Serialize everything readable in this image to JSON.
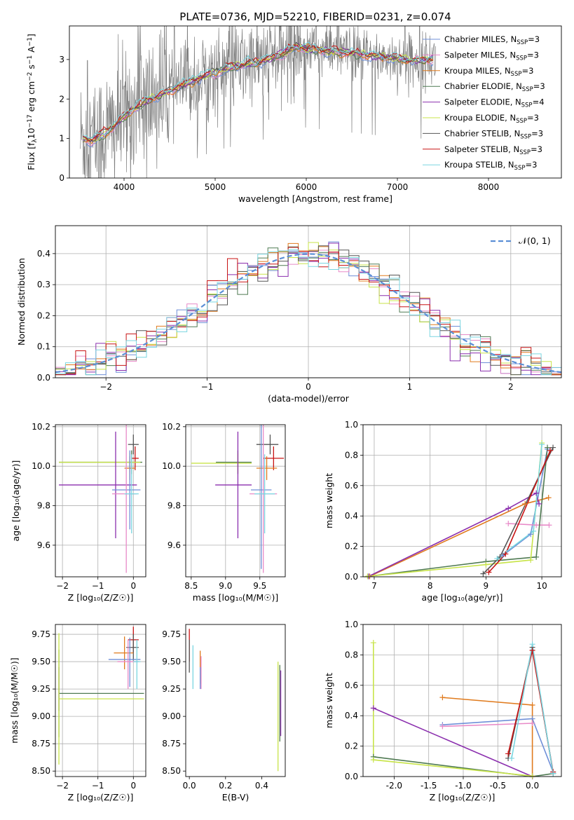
{
  "chart_data": [
    {
      "type": "line",
      "title": "PLATE=0736, MJD=52210, FIBERID=0231, z=0.074",
      "xlabel": "wavelength [Angstrom, rest frame]",
      "ylabel_parts": [
        "Flux [f",
        "λ",
        "10",
        "−17",
        " erg cm",
        "−2",
        " s",
        "−1",
        " A",
        "−1",
        "]"
      ],
      "xlim": [
        3400,
        8800
      ],
      "ylim": [
        0,
        3.85
      ],
      "xticks": [
        4000,
        5000,
        6000,
        7000,
        8000
      ],
      "yticks": [
        0,
        1,
        2,
        3
      ],
      "grid": false,
      "legend_position": "upper-right",
      "data_color": "#808080",
      "model_anchor_x": [
        3550,
        3650,
        3800,
        3900,
        4000,
        4100,
        4300,
        4500,
        4700,
        4900,
        5100,
        5300,
        5500,
        5700,
        5900,
        6100,
        6300,
        6500,
        6700,
        6900,
        7100,
        7300,
        7400
      ],
      "model_anchor_y": [
        1.0,
        0.95,
        1.15,
        1.35,
        1.55,
        1.75,
        2.0,
        2.2,
        2.4,
        2.6,
        2.75,
        2.85,
        2.95,
        3.1,
        3.3,
        3.25,
        3.2,
        3.15,
        3.1,
        3.05,
        3.0,
        3.0,
        3.0
      ],
      "series": [
        {
          "name": "Chabrier MILES, N",
          "sub": "SSP",
          "suffix": "=3",
          "color": "#6e8fd8"
        },
        {
          "name": "Salpeter MILES, N",
          "sub": "SSP",
          "suffix": "=3",
          "color": "#e88ac8"
        },
        {
          "name": "Kroupa MILES, N",
          "sub": "SSP",
          "suffix": "=3",
          "color": "#e07b1e"
        },
        {
          "name": "Chabrier ELODIE, N",
          "sub": "SSP",
          "suffix": "=3",
          "color": "#4f7a52"
        },
        {
          "name": "Salpeter ELODIE, N",
          "sub": "SSP",
          "suffix": "=4",
          "color": "#8b2fae"
        },
        {
          "name": "Kroupa ELODIE, N",
          "sub": "SSP",
          "suffix": "=3",
          "color": "#c8e44a"
        },
        {
          "name": "Chabrier STELIB, N",
          "sub": "SSP",
          "suffix": "=3",
          "color": "#555555"
        },
        {
          "name": "Salpeter STELIB, N",
          "sub": "SSP",
          "suffix": "=3",
          "color": "#c81414"
        },
        {
          "name": "Kroupa STELIB, N",
          "sub": "SSP",
          "suffix": "=3",
          "color": "#7ad6e0"
        }
      ]
    },
    {
      "type": "histogram",
      "xlabel": "(data-model)/error",
      "ylabel": "Normed distribution",
      "xlim": [
        -2.5,
        2.5
      ],
      "ylim": [
        0,
        0.49
      ],
      "xticks": [
        -2,
        -1,
        0,
        1,
        2
      ],
      "yticks": [
        0.0,
        0.1,
        0.2,
        0.3,
        0.4
      ],
      "grid": true,
      "legend_position": "upper-right",
      "legend_label": "𝒩(0, 1)",
      "normal_curve": {
        "mean": 0,
        "sigma": 1,
        "color": "#5b8fd6",
        "dash": true
      },
      "bin_width": 0.1,
      "bin_start": -2.5,
      "series_colors": [
        "#6e8fd8",
        "#e88ac8",
        "#e07b1e",
        "#4f7a52",
        "#8b2fae",
        "#c8e44a",
        "#555555",
        "#c81414",
        "#7ad6e0"
      ]
    },
    {
      "type": "errorbar",
      "panel": "age-vs-Z",
      "xlabel": "Z [log₁₀(Z/Z☉)]",
      "ylabel": "age  [log₁₀(age/yr)]",
      "xlim": [
        -2.2,
        0.35
      ],
      "ylim": [
        9.44,
        10.21
      ],
      "xticks": [
        -2,
        -1,
        0
      ],
      "yticks": [
        9.6,
        9.8,
        10.0,
        10.2
      ],
      "grid": true,
      "points": [
        {
          "x": 0.0,
          "y": 10.11,
          "xerr": [
            0.15,
            0.15
          ],
          "yerr": [
            0.05,
            0.05
          ],
          "color": "#555555"
        },
        {
          "x": 0.05,
          "y": 10.04,
          "xerr": [
            0.1,
            0.1
          ],
          "yerr": [
            0.06,
            0.06
          ],
          "color": "#c81414"
        },
        {
          "x": -0.05,
          "y": 10.02,
          "xerr": [
            2.05,
            0.3
          ],
          "yerr": [
            0.06,
            0.06
          ],
          "color": "#4f7a52"
        },
        {
          "x": -0.1,
          "y": 10.02,
          "xerr": [
            2.0,
            0.3
          ],
          "yerr": [
            0.05,
            0.05
          ],
          "color": "#c8e44a"
        },
        {
          "x": -0.1,
          "y": 9.99,
          "xerr": [
            0.15,
            0.15
          ],
          "yerr": [
            0.06,
            0.06
          ],
          "color": "#e07b1e"
        },
        {
          "x": -0.5,
          "y": 9.905,
          "xerr": [
            1.6,
            0.6
          ],
          "yerr": [
            0.27,
            0.27
          ],
          "color": "#8b2fae"
        },
        {
          "x": -0.1,
          "y": 9.88,
          "xerr": [
            0.5,
            0.3
          ],
          "yerr": [
            0.2,
            0.2
          ],
          "color": "#6e8fd8"
        },
        {
          "x": -0.2,
          "y": 9.86,
          "xerr": [
            0.4,
            0.3
          ],
          "yerr": [
            0.4,
            0.4
          ],
          "color": "#e88ac8"
        },
        {
          "x": -0.05,
          "y": 9.86,
          "xerr": [
            0.2,
            0.2
          ],
          "yerr": [
            0.2,
            0.2
          ],
          "color": "#7ad6e0"
        }
      ]
    },
    {
      "type": "errorbar",
      "panel": "age-vs-mass",
      "xlabel": "mass [log₁₀(M/M☉)]",
      "xlim": [
        8.42,
        9.87
      ],
      "ylim": [
        9.44,
        10.21
      ],
      "xticks": [
        8.5,
        9.0,
        9.5
      ],
      "yticks": [
        9.6,
        9.8,
        10.0,
        10.2
      ],
      "grid": true,
      "points": [
        {
          "x": 9.65,
          "y": 10.11,
          "xerr": [
            0.2,
            0.12
          ],
          "yerr": [
            0.05,
            0.05
          ],
          "color": "#555555"
        },
        {
          "x": 9.7,
          "y": 10.04,
          "xerr": [
            0.15,
            0.15
          ],
          "yerr": [
            0.06,
            0.06
          ],
          "color": "#c81414"
        },
        {
          "x": 9.18,
          "y": 10.02,
          "xerr": [
            0.32,
            0.2
          ],
          "yerr": [
            0.06,
            0.06
          ],
          "color": "#4f7a52"
        },
        {
          "x": 9.18,
          "y": 10.015,
          "xerr": [
            0.68,
            0.2
          ],
          "yerr": [
            0.05,
            0.05
          ],
          "color": "#c8e44a"
        },
        {
          "x": 9.6,
          "y": 9.99,
          "xerr": [
            0.15,
            0.15
          ],
          "yerr": [
            0.06,
            0.06
          ],
          "color": "#e07b1e"
        },
        {
          "x": 9.18,
          "y": 9.905,
          "xerr": [
            0.33,
            0.2
          ],
          "yerr": [
            0.27,
            0.27
          ],
          "color": "#8b2fae"
        },
        {
          "x": 9.52,
          "y": 9.88,
          "xerr": [
            0.15,
            0.15
          ],
          "yerr": [
            0.4,
            0.4
          ],
          "color": "#6e8fd8"
        },
        {
          "x": 9.55,
          "y": 9.86,
          "xerr": [
            0.2,
            0.2
          ],
          "yerr": [
            0.4,
            0.4
          ],
          "color": "#e88ac8"
        },
        {
          "x": 9.57,
          "y": 9.86,
          "xerr": [
            0.15,
            0.15
          ],
          "yerr": [
            0.2,
            0.2
          ],
          "color": "#7ad6e0"
        }
      ]
    },
    {
      "type": "line",
      "panel": "mass-weight-vs-age",
      "xlabel": "age  [log₁₀(age/yr)]",
      "ylabel": "mass weight",
      "xlim": [
        6.8,
        10.35
      ],
      "ylim": [
        0,
        1.0
      ],
      "xticks": [
        7,
        8,
        9,
        10
      ],
      "yticks": [
        0.0,
        0.2,
        0.4,
        0.6,
        0.8,
        1.0
      ],
      "grid": true,
      "series": [
        {
          "color": "#6e8fd8",
          "x": [
            9.3,
            9.8,
            10.1
          ],
          "y": [
            0.14,
            0.28,
            0.84
          ]
        },
        {
          "color": "#e88ac8",
          "x": [
            9.4,
            9.9,
            10.13
          ],
          "y": [
            0.35,
            0.34,
            0.34
          ]
        },
        {
          "color": "#e07b1e",
          "x": [
            6.92,
            9.7,
            10.12
          ],
          "y": [
            0.003,
            0.48,
            0.52
          ]
        },
        {
          "color": "#4f7a52",
          "x": [
            6.9,
            9.0,
            9.9,
            10.1
          ],
          "y": [
            0.003,
            0.1,
            0.13,
            0.85
          ]
        },
        {
          "color": "#8b2fae",
          "x": [
            6.9,
            9.4,
            9.9,
            9.95
          ],
          "y": [
            0.003,
            0.45,
            0.55,
            0.48
          ]
        },
        {
          "color": "#c8e44a",
          "x": [
            6.88,
            9.0,
            9.8,
            10.0
          ],
          "y": [
            0.003,
            0.08,
            0.11,
            0.88
          ]
        },
        {
          "color": "#555555",
          "x": [
            8.95,
            9.25,
            10.2
          ],
          "y": [
            0.02,
            0.13,
            0.85
          ]
        },
        {
          "color": "#c81414",
          "x": [
            9.05,
            9.35,
            10.15
          ],
          "y": [
            0.03,
            0.15,
            0.83
          ]
        },
        {
          "color": "#7ad6e0",
          "x": [
            9.2,
            9.85,
            10.0
          ],
          "y": [
            0.12,
            0.3,
            0.87
          ]
        }
      ]
    },
    {
      "type": "errorbar",
      "panel": "mass-vs-Z",
      "xlabel": "Z [log₁₀(Z/Z☉)]",
      "ylabel": "mass [log₁₀(M/M☉)]",
      "xlim": [
        -2.2,
        0.35
      ],
      "ylim": [
        8.45,
        9.84
      ],
      "xticks": [
        -2,
        -1,
        0
      ],
      "yticks": [
        8.5,
        8.75,
        9.0,
        9.25,
        9.5,
        9.75
      ],
      "grid": true,
      "points": [
        {
          "x": 0.0,
          "y": 9.7,
          "xerr": [
            0.15,
            0.15
          ],
          "yerr": [
            0.12,
            0.12
          ],
          "color": "#c81414"
        },
        {
          "x": 0.0,
          "y": 9.63,
          "xerr": [
            0.2,
            0.15
          ],
          "yerr": [
            0.12,
            0.12
          ],
          "color": "#555555"
        },
        {
          "x": -0.25,
          "y": 9.58,
          "xerr": [
            0.3,
            0.25
          ],
          "yerr": [
            0.15,
            0.15
          ],
          "color": "#e07b1e"
        },
        {
          "x": -0.1,
          "y": 9.52,
          "xerr": [
            0.6,
            0.3
          ],
          "yerr": [
            0.25,
            0.2
          ],
          "color": "#6e8fd8"
        },
        {
          "x": -0.15,
          "y": 9.5,
          "xerr": [
            0.3,
            0.3
          ],
          "yerr": [
            0.25,
            0.2
          ],
          "color": "#e88ac8"
        },
        {
          "x": 0.1,
          "y": 9.5,
          "xerr": [
            0.1,
            0.1
          ],
          "yerr": [
            0.25,
            0.2
          ],
          "color": "#7ad6e0"
        },
        {
          "x": -2.1,
          "y": 9.25,
          "xerr": [
            0.0,
            0.0
          ],
          "yerr": [
            0.2,
            0.2
          ],
          "color": "#8b2fae"
        },
        {
          "x": -2.1,
          "y": 9.21,
          "xerr": [
            0.0,
            2.4
          ],
          "yerr": [
            0.4,
            0.4
          ],
          "color": "#4f7a52"
        },
        {
          "x": -2.1,
          "y": 9.16,
          "xerr": [
            0.0,
            2.4
          ],
          "yerr": [
            0.6,
            0.6
          ],
          "color": "#c8e44a"
        }
      ]
    },
    {
      "type": "errorbar",
      "panel": "mass-vs-EBV",
      "xlabel": "E(B-V)",
      "xlim": [
        -0.02,
        0.53
      ],
      "ylim": [
        8.45,
        9.84
      ],
      "xticks": [
        0.0,
        0.2,
        0.4
      ],
      "yticks": [
        8.5,
        8.75,
        9.0,
        9.25,
        9.5,
        9.75
      ],
      "grid": false,
      "points": [
        {
          "x": 0.0,
          "y": 9.65,
          "xerr": [
            0,
            0
          ],
          "yerr": [
            0.15,
            0.15
          ],
          "color": "#c81414"
        },
        {
          "x": 0.0,
          "y": 9.55,
          "xerr": [
            0,
            0
          ],
          "yerr": [
            0.15,
            0.15
          ],
          "color": "#555555"
        },
        {
          "x": 0.02,
          "y": 9.45,
          "xerr": [
            0,
            0
          ],
          "yerr": [
            0.2,
            0.2
          ],
          "color": "#7ad6e0"
        },
        {
          "x": 0.06,
          "y": 9.45,
          "xerr": [
            0,
            0
          ],
          "yerr": [
            0.15,
            0.15
          ],
          "color": "#e07b1e"
        },
        {
          "x": 0.065,
          "y": 9.4,
          "xerr": [
            0,
            0
          ],
          "yerr": [
            0.15,
            0.15
          ],
          "color": "#e88ac8"
        },
        {
          "x": 0.06,
          "y": 9.35,
          "xerr": [
            0,
            0
          ],
          "yerr": [
            0.1,
            0.1
          ],
          "color": "#6e8fd8"
        },
        {
          "x": 0.5,
          "y": 9.12,
          "xerr": [
            0,
            0
          ],
          "yerr": [
            0.35,
            0.35
          ],
          "color": "#4f7a52"
        },
        {
          "x": 0.505,
          "y": 9.12,
          "xerr": [
            0,
            0
          ],
          "yerr": [
            0.3,
            0.3
          ],
          "color": "#8b2fae"
        },
        {
          "x": 0.49,
          "y": 9.0,
          "xerr": [
            0,
            0
          ],
          "yerr": [
            0.5,
            0.5
          ],
          "color": "#c8e44a"
        }
      ]
    },
    {
      "type": "line",
      "panel": "mass-weight-vs-Z",
      "xlabel": "Z [log₁₀(Z/Z☉)]",
      "ylabel": "mass weight",
      "xlim": [
        -2.45,
        0.42
      ],
      "ylim": [
        0,
        1.0
      ],
      "xticks": [
        -2.0,
        -1.5,
        -1.0,
        -0.5,
        0.0
      ],
      "yticks": [
        0.0,
        0.2,
        0.4,
        0.6,
        0.8,
        1.0
      ],
      "grid": true,
      "series": [
        {
          "color": "#6e8fd8",
          "x": [
            -1.3,
            0.0,
            0.3
          ],
          "y": [
            0.34,
            0.38,
            0.03
          ]
        },
        {
          "color": "#e88ac8",
          "x": [
            -1.3,
            0.0
          ],
          "y": [
            0.33,
            0.35
          ]
        },
        {
          "color": "#e07b1e",
          "x": [
            -1.3,
            0.0,
            0.0
          ],
          "y": [
            0.52,
            0.47,
            0.003
          ]
        },
        {
          "color": "#4f7a52",
          "x": [
            -2.3,
            0.0,
            0.3
          ],
          "y": [
            0.13,
            0.0,
            0.02
          ]
        },
        {
          "color": "#8b2fae",
          "x": [
            -2.3,
            0.0
          ],
          "y": [
            0.45,
            0.0
          ]
        },
        {
          "color": "#c8e44a",
          "x": [
            -2.3,
            -2.3,
            0.0
          ],
          "y": [
            0.88,
            0.11,
            0.003
          ]
        },
        {
          "color": "#555555",
          "x": [
            -0.35,
            0.0,
            0.3
          ],
          "y": [
            0.12,
            0.85,
            0.02
          ]
        },
        {
          "color": "#c81414",
          "x": [
            -0.35,
            0.0,
            0.3
          ],
          "y": [
            0.15,
            0.83,
            0.03
          ]
        },
        {
          "color": "#7ad6e0",
          "x": [
            -0.3,
            0.0,
            0.3
          ],
          "y": [
            0.12,
            0.87,
            0.02
          ]
        }
      ]
    }
  ]
}
